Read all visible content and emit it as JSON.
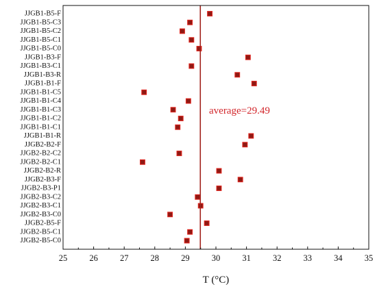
{
  "chart_data": {
    "type": "scatter",
    "orientation": "horizontal",
    "categories": [
      "JJGB1-B5-F",
      "JJGB1-B5-C3",
      "JJGB1-B5-C2",
      "JJGB1-B5-C1",
      "JJGB1-B5-C0",
      "JJGB1-B3-F",
      "JJGB1-B3-C1",
      "JJGB1-B3-R",
      "JJGB1-B1-F",
      "JJGB1-B1-C5",
      "JJGB1-B1-C4",
      "JJGB1-B1-C3",
      "JJGB1-B1-C2",
      "JJGB1-B1-C1",
      "JJGB1-B1-R",
      "JJGB2-B2-F",
      "JJGB2-B2-C2",
      "JJGB2-B2-C1",
      "JJGB2-B2-R",
      "JJGB2-B3-F",
      "JJGB2-B3-P1",
      "JJGB2-B3-C2",
      "JJGB2-B3-C1",
      "JJGB2-B3-C0",
      "JJGB2-B5-F",
      "JJGB2-B5-C1",
      "JJGB2-B5-C0"
    ],
    "values": [
      29.8,
      29.15,
      28.9,
      29.2,
      29.45,
      31.05,
      29.2,
      30.7,
      31.25,
      27.65,
      29.1,
      28.6,
      28.85,
      28.75,
      31.15,
      30.95,
      28.8,
      27.6,
      30.1,
      30.8,
      30.1,
      29.4,
      29.5,
      28.5,
      29.7,
      29.15,
      29.05
    ],
    "average": 29.49,
    "average_label": "average=29.49",
    "xlabel": "T (°C)",
    "xlim": [
      25,
      35
    ],
    "xticks": [
      "25",
      "26",
      "27",
      "28",
      "29",
      "30",
      "31",
      "32",
      "33",
      "34",
      "35"
    ],
    "grid": false,
    "legend": "none",
    "colors": {
      "marker_fill": "#8e1a14",
      "marker_edge": "#e0251e",
      "average_line": "#a2231d",
      "average_text": "#d2252a",
      "axis": "#111111"
    }
  }
}
